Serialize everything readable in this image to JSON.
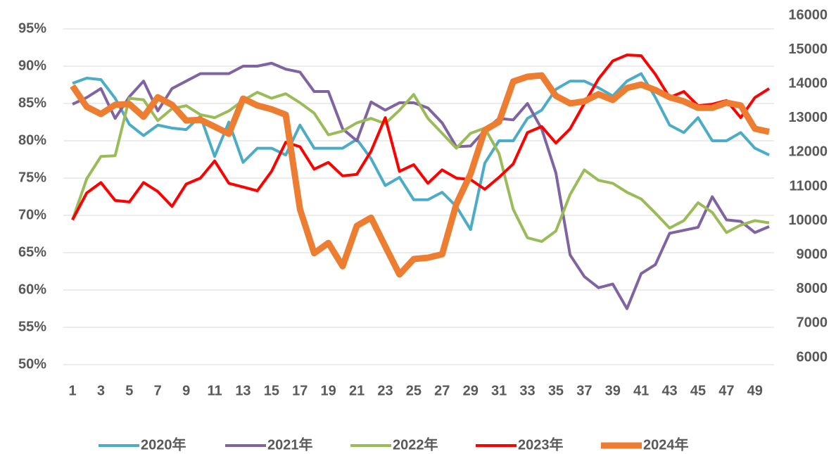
{
  "chart_data": {
    "type": "line",
    "x": [
      1,
      2,
      3,
      4,
      5,
      6,
      7,
      8,
      9,
      10,
      11,
      12,
      13,
      14,
      15,
      16,
      17,
      18,
      19,
      20,
      21,
      22,
      23,
      24,
      25,
      26,
      27,
      28,
      29,
      30,
      31,
      32,
      33,
      34,
      35,
      36,
      37,
      38,
      39,
      40,
      41,
      42,
      43,
      44,
      45,
      46,
      47,
      48,
      49,
      50
    ],
    "xlim": [
      1,
      50
    ],
    "xticks": [
      1,
      3,
      5,
      7,
      9,
      11,
      13,
      15,
      17,
      19,
      21,
      23,
      25,
      27,
      29,
      31,
      33,
      35,
      37,
      39,
      41,
      43,
      45,
      47,
      49
    ],
    "ylim": [
      50,
      95
    ],
    "yticks": [
      {
        "value": 50,
        "label": "50%"
      },
      {
        "value": 55,
        "label": "55%"
      },
      {
        "value": 60,
        "label": "60%"
      },
      {
        "value": 65,
        "label": "65%"
      },
      {
        "value": 70,
        "label": "70%"
      },
      {
        "value": 75,
        "label": "75%"
      },
      {
        "value": 80,
        "label": "80%"
      },
      {
        "value": 85,
        "label": "85%"
      },
      {
        "value": 90,
        "label": "90%"
      },
      {
        "value": 95,
        "label": "95%"
      }
    ],
    "y2lim": [
      6000,
      16000
    ],
    "y2ticks": [
      6000,
      7000,
      8000,
      9000,
      10000,
      11000,
      12000,
      13000,
      14000,
      15000,
      16000
    ],
    "grid": true,
    "legend": "bottom",
    "series": [
      {
        "name": "2020年",
        "color": "#4bacc6",
        "values": [
          87.7,
          88.4,
          88.2,
          85.7,
          82.2,
          80.7,
          82.1,
          81.7,
          81.5,
          83.3,
          77.9,
          82.5,
          77.1,
          79,
          79,
          78.1,
          82.1,
          79,
          79,
          79,
          80.2,
          77.6,
          74,
          75.1,
          72.1,
          72.1,
          73.1,
          71.2,
          68.1,
          77,
          80,
          80,
          83,
          84.1,
          86.9,
          88,
          88,
          87.1,
          86,
          88,
          89,
          85.8,
          82.1,
          81.1,
          83.1,
          80,
          80,
          81.1,
          79,
          78.1
        ]
      },
      {
        "name": "2021年",
        "color": "#8064a2",
        "values": [
          84.9,
          85.8,
          87,
          83,
          85.9,
          88,
          84,
          87,
          88,
          89,
          89,
          89,
          90,
          90,
          90.4,
          89.6,
          89.2,
          86.6,
          86.6,
          81.6,
          80,
          85.2,
          84.1,
          85.1,
          85.1,
          84.4,
          82.4,
          79.2,
          79.3,
          81.4,
          83,
          82.8,
          85,
          81.6,
          75.7,
          64.7,
          61.8,
          60.3,
          60.8,
          57.5,
          62.2,
          63.4,
          67.6,
          68,
          68.4,
          72.5,
          69.4,
          69.2,
          67.7,
          68.5
        ]
      },
      {
        "name": "2022年",
        "color": "#9bbb59",
        "values": [
          69.4,
          74.9,
          77.9,
          78,
          85.7,
          85.5,
          82.7,
          84.3,
          84.7,
          83.5,
          83.1,
          84,
          85.4,
          86.5,
          85.7,
          86.3,
          85.1,
          83.7,
          80.8,
          81.3,
          82.4,
          83,
          82.3,
          84.1,
          86.2,
          83,
          81,
          79,
          81,
          81.7,
          78.3,
          70.8,
          67,
          66.5,
          67.9,
          72.8,
          76.1,
          74.7,
          74.3,
          73.1,
          72.2,
          70.3,
          68.3,
          69.3,
          71.7,
          70.4,
          67.7,
          68.7,
          69.3,
          69
        ]
      },
      {
        "name": "2023年",
        "color": "#ff0000",
        "values": [
          69.4,
          73,
          74.4,
          72,
          71.8,
          74.4,
          73.2,
          71.2,
          74.2,
          75,
          77.3,
          74.3,
          73.8,
          73.3,
          75.9,
          79.8,
          79.2,
          76.2,
          77.1,
          75.3,
          75.5,
          78.6,
          83.1,
          75.9,
          76.8,
          74.3,
          76.1,
          75,
          74.8,
          73.5,
          75.1,
          76.9,
          81.1,
          81.9,
          79.7,
          81.6,
          85,
          88.3,
          90.7,
          91.5,
          91.4,
          88.9,
          85.8,
          86.6,
          84.7,
          84.9,
          85.4,
          83.1,
          85.8,
          87
        ]
      },
      {
        "name": "2024年",
        "color": "#ed7d31",
        "axis": "y2",
        "values": [
          13940,
          13330,
          13120,
          13390,
          13410,
          13040,
          13610,
          13390,
          12930,
          12950,
          12750,
          12540,
          13570,
          13370,
          13260,
          13100,
          10340,
          9050,
          9350,
          8670,
          9850,
          10090,
          9250,
          8430,
          8880,
          8920,
          9020,
          10490,
          11370,
          12650,
          12890,
          14070,
          14210,
          14250,
          13650,
          13430,
          13490,
          13700,
          13530,
          13880,
          13980,
          13820,
          13610,
          13490,
          13300,
          13300,
          13450,
          13370,
          12690,
          12600
        ]
      }
    ]
  }
}
